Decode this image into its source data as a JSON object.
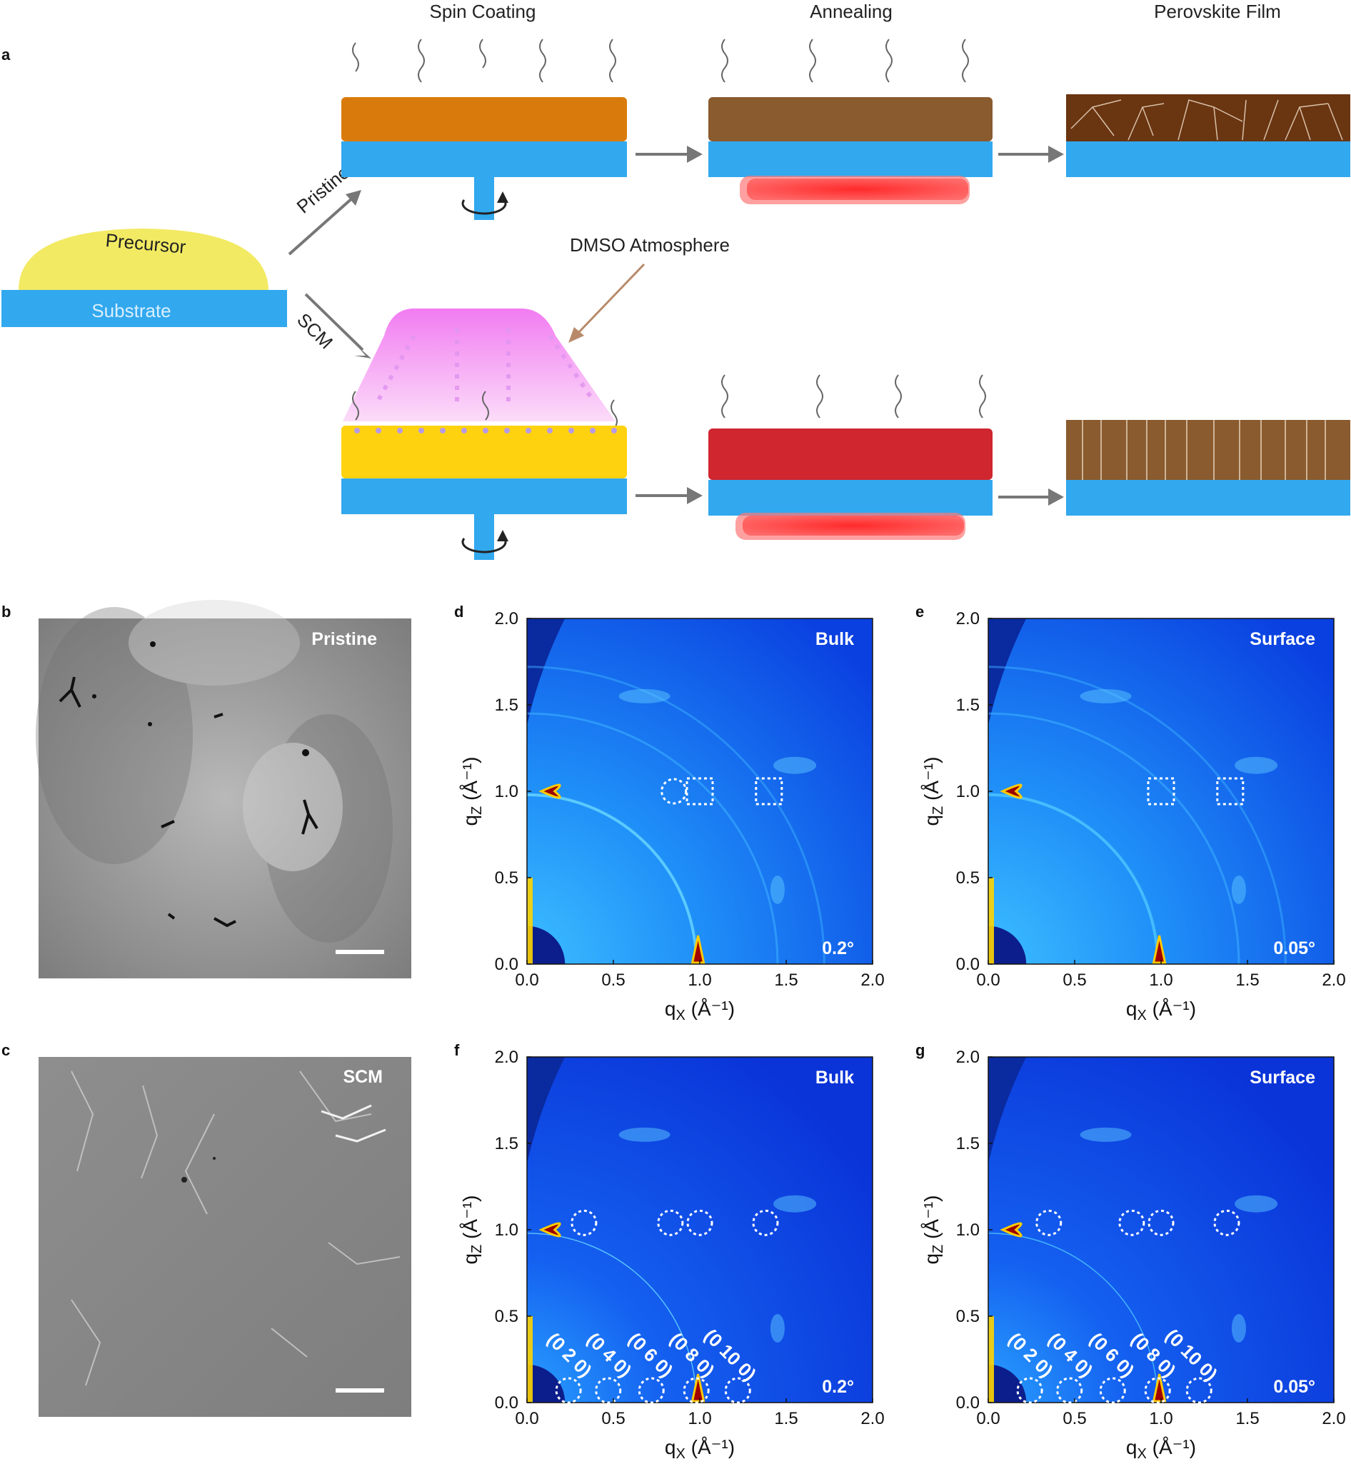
{
  "panel_a": {
    "label": "a",
    "steps": [
      "Spin Coating",
      "Annealing",
      "Perovskite Film"
    ],
    "precursor": "Precursor",
    "substrate": "Substrate",
    "pristine": "Pristine",
    "scm": "SCM",
    "dmso": "DMSO Atmosphere"
  },
  "panel_b": {
    "label": "b",
    "tag": "Pristine"
  },
  "panel_c": {
    "label": "c",
    "tag": "SCM"
  },
  "giwaxs": [
    {
      "label": "d",
      "region": "Bulk",
      "angle": "0.2°"
    },
    {
      "label": "e",
      "region": "Surface",
      "angle": "0.05°"
    },
    {
      "label": "f",
      "region": "Bulk",
      "angle": "0.2°"
    },
    {
      "label": "g",
      "region": "Surface",
      "angle": "0.05°"
    }
  ],
  "hkl_labels": [
    "(0 2 0)",
    "(0 4 0)",
    "(0 6 0)",
    "(0 8 0)",
    "(0 10 0)"
  ],
  "chart_data": [
    {
      "type": "heatmap",
      "panel": "d",
      "corner_label": "Bulk",
      "angle": "0.2°",
      "xlabel_base": "q",
      "xlabel_sub": "X",
      "ylabel_base": "q",
      "ylabel_sub": "Z",
      "unit": "(Å⁻¹)",
      "xlim": [
        0,
        2
      ],
      "ylim": [
        0,
        2
      ],
      "xticks": [
        "0.0",
        "0.5",
        "1.0",
        "1.5",
        "2.0"
      ],
      "yticks": [
        "0.0",
        "0.5",
        "1.0",
        "1.5",
        "2.0"
      ],
      "markers": [
        {
          "shape": "circle",
          "qx": 0.85,
          "qz": 1.0
        },
        {
          "shape": "square",
          "qx": 1.0,
          "qz": 1.0
        },
        {
          "shape": "square",
          "qx": 1.4,
          "qz": 1.0
        }
      ]
    },
    {
      "type": "heatmap",
      "panel": "e",
      "corner_label": "Surface",
      "angle": "0.05°",
      "xlabel_base": "q",
      "xlabel_sub": "X",
      "ylabel_base": "q",
      "ylabel_sub": "Z",
      "unit": "(Å⁻¹)",
      "xlim": [
        0,
        2
      ],
      "ylim": [
        0,
        2
      ],
      "xticks": [
        "0.0",
        "0.5",
        "1.0",
        "1.5",
        "2.0"
      ],
      "yticks": [
        "0.0",
        "0.5",
        "1.0",
        "1.5",
        "2.0"
      ],
      "markers": [
        {
          "shape": "square",
          "qx": 1.0,
          "qz": 1.0
        },
        {
          "shape": "square",
          "qx": 1.4,
          "qz": 1.0
        }
      ]
    },
    {
      "type": "heatmap",
      "panel": "f",
      "corner_label": "Bulk",
      "angle": "0.2°",
      "xlabel_base": "q",
      "xlabel_sub": "X",
      "ylabel_base": "q",
      "ylabel_sub": "Z",
      "unit": "(Å⁻¹)",
      "xlim": [
        0,
        2
      ],
      "ylim": [
        0,
        2
      ],
      "xticks": [
        "0.0",
        "0.5",
        "1.0",
        "1.5",
        "2.0"
      ],
      "yticks": [
        "0.0",
        "0.5",
        "1.0",
        "1.5",
        "2.0"
      ],
      "markers": [
        {
          "shape": "circle",
          "qx": 0.33,
          "qz": 1.04
        },
        {
          "shape": "circle",
          "qx": 0.83,
          "qz": 1.04
        },
        {
          "shape": "circle",
          "qx": 1.0,
          "qz": 1.04
        },
        {
          "shape": "circle",
          "qx": 1.38,
          "qz": 1.04
        },
        {
          "shape": "circle",
          "qx": 0.24,
          "qz": 0.07
        },
        {
          "shape": "circle",
          "qx": 0.47,
          "qz": 0.07
        },
        {
          "shape": "circle",
          "qx": 0.72,
          "qz": 0.07
        },
        {
          "shape": "circle",
          "qx": 0.98,
          "qz": 0.07
        },
        {
          "shape": "circle",
          "qx": 1.22,
          "qz": 0.07
        }
      ]
    },
    {
      "type": "heatmap",
      "panel": "g",
      "corner_label": "Surface",
      "angle": "0.05°",
      "xlabel_base": "q",
      "xlabel_sub": "X",
      "ylabel_base": "q",
      "ylabel_sub": "Z",
      "unit": "(Å⁻¹)",
      "xlim": [
        0,
        2
      ],
      "ylim": [
        0,
        2
      ],
      "xticks": [
        "0.0",
        "0.5",
        "1.0",
        "1.5",
        "2.0"
      ],
      "yticks": [
        "0.0",
        "0.5",
        "1.0",
        "1.5",
        "2.0"
      ],
      "markers": [
        {
          "shape": "circle",
          "qx": 0.35,
          "qz": 1.04
        },
        {
          "shape": "circle",
          "qx": 0.83,
          "qz": 1.04
        },
        {
          "shape": "circle",
          "qx": 1.0,
          "qz": 1.04
        },
        {
          "shape": "circle",
          "qx": 1.38,
          "qz": 1.04
        },
        {
          "shape": "circle",
          "qx": 0.24,
          "qz": 0.07
        },
        {
          "shape": "circle",
          "qx": 0.47,
          "qz": 0.07
        },
        {
          "shape": "circle",
          "qx": 0.72,
          "qz": 0.07
        },
        {
          "shape": "circle",
          "qx": 0.98,
          "qz": 0.07
        },
        {
          "shape": "circle",
          "qx": 1.22,
          "qz": 0.07
        }
      ]
    }
  ]
}
